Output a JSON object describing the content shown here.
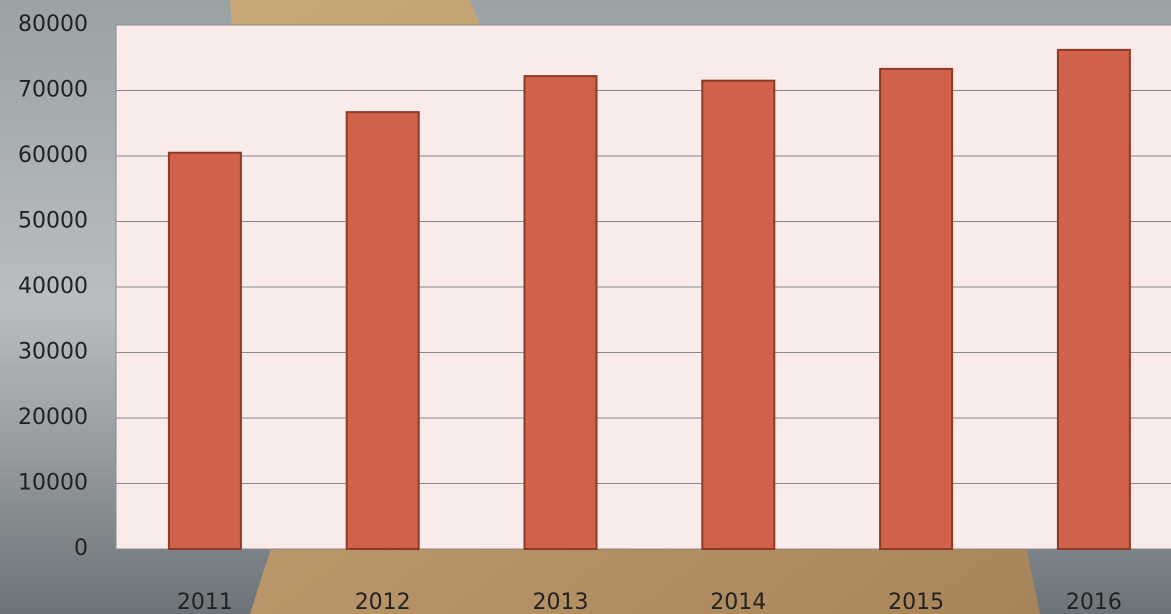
{
  "chart_data": {
    "type": "bar",
    "categories": [
      "2011",
      "2012",
      "2013",
      "2014",
      "2015",
      "2016"
    ],
    "values": [
      60500,
      66700,
      72200,
      71500,
      73300,
      76200
    ],
    "color": "#d0614a",
    "ylim": [
      0,
      80000
    ],
    "yticks": [
      0,
      10000,
      20000,
      30000,
      40000,
      50000,
      60000,
      70000,
      80000
    ],
    "grid": true
  }
}
